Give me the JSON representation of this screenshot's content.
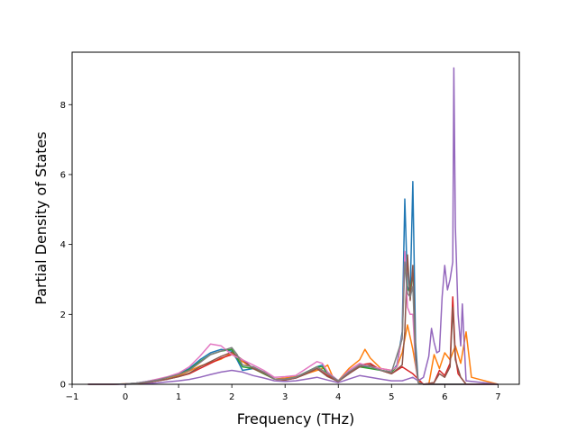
{
  "chart_data": {
    "type": "line",
    "title": "",
    "xlabel": "Frequency (THz)",
    "ylabel": "Partial Density of States",
    "xlim": [
      -1.0,
      7.4
    ],
    "ylim": [
      0,
      9.5
    ],
    "xticks": [
      -1,
      0,
      1,
      2,
      3,
      4,
      5,
      6,
      7
    ],
    "yticks": [
      0,
      2,
      4,
      6,
      8
    ],
    "grid": false,
    "legend": "none",
    "colors": [
      "#1f77b4",
      "#ff7f0e",
      "#2ca02c",
      "#d62728",
      "#9467bd",
      "#8c564b",
      "#e377c2",
      "#7f7f7f"
    ],
    "series": [
      {
        "x": [
          -0.7,
          -0.3,
          0,
          0.2,
          0.4,
          0.6,
          0.8,
          1.0,
          1.2,
          1.4,
          1.6,
          1.8,
          2.0,
          2.1,
          2.2,
          2.4,
          2.6,
          2.8,
          3.0,
          3.2,
          3.4,
          3.6,
          3.7,
          3.8,
          4.0,
          4.2,
          4.4,
          4.6,
          4.8,
          5.0,
          5.1,
          5.2,
          5.25,
          5.3,
          5.35,
          5.4,
          5.45,
          5.5,
          5.6,
          5.7,
          5.8,
          6.0,
          6.2,
          6.4,
          6.6,
          7.0
        ],
        "y": [
          0,
          0,
          0.01,
          0.03,
          0.08,
          0.14,
          0.2,
          0.3,
          0.45,
          0.7,
          0.9,
          1.0,
          0.95,
          0.7,
          0.4,
          0.45,
          0.35,
          0.15,
          0.15,
          0.2,
          0.35,
          0.5,
          0.55,
          0.35,
          0.1,
          0.35,
          0.5,
          0.5,
          0.4,
          0.35,
          0.55,
          1.5,
          5.3,
          2.8,
          2.6,
          5.8,
          1.2,
          0.1,
          0,
          0,
          0,
          0,
          0,
          0,
          0,
          0
        ]
      },
      {
        "x": [
          -0.7,
          -0.3,
          0,
          0.2,
          0.4,
          0.6,
          0.8,
          1.0,
          1.2,
          1.4,
          1.6,
          1.8,
          2.0,
          2.1,
          2.2,
          2.4,
          2.6,
          2.8,
          3.0,
          3.2,
          3.4,
          3.6,
          3.7,
          3.8,
          3.9,
          4.0,
          4.2,
          4.4,
          4.5,
          4.6,
          4.8,
          5.0,
          5.1,
          5.2,
          5.3,
          5.4,
          5.5,
          5.6,
          5.7,
          5.8,
          5.9,
          6.0,
          6.1,
          6.2,
          6.3,
          6.4,
          6.5,
          7.0
        ],
        "y": [
          0,
          0,
          0.01,
          0.02,
          0.05,
          0.1,
          0.16,
          0.25,
          0.38,
          0.52,
          0.62,
          0.72,
          0.9,
          0.75,
          0.65,
          0.45,
          0.3,
          0.15,
          0.18,
          0.22,
          0.3,
          0.4,
          0.45,
          0.55,
          0.2,
          0.1,
          0.45,
          0.7,
          1.0,
          0.75,
          0.45,
          0.4,
          0.5,
          0.9,
          1.7,
          1.0,
          0.1,
          0,
          0,
          0.85,
          0.45,
          0.9,
          0.7,
          1.1,
          0.6,
          1.5,
          0.2,
          0
        ]
      },
      {
        "x": [
          -0.7,
          -0.3,
          0,
          0.2,
          0.4,
          0.6,
          0.8,
          1.0,
          1.2,
          1.4,
          1.6,
          1.8,
          2.0,
          2.1,
          2.2,
          2.4,
          2.6,
          2.8,
          3.0,
          3.2,
          3.4,
          3.6,
          3.7,
          3.8,
          4.0,
          4.2,
          4.4,
          4.6,
          4.8,
          5.0,
          5.1,
          5.2,
          5.25,
          5.3,
          5.35,
          5.4,
          5.45,
          5.5,
          5.6,
          7.0
        ],
        "y": [
          0,
          0,
          0.01,
          0.03,
          0.07,
          0.13,
          0.2,
          0.28,
          0.42,
          0.65,
          0.85,
          0.95,
          1.0,
          0.75,
          0.5,
          0.45,
          0.3,
          0.15,
          0.15,
          0.2,
          0.35,
          0.5,
          0.5,
          0.3,
          0.1,
          0.35,
          0.5,
          0.45,
          0.4,
          0.35,
          0.5,
          1.4,
          3.6,
          2.7,
          2.7,
          3.2,
          0.8,
          0.05,
          0,
          0
        ]
      },
      {
        "x": [
          -0.7,
          -0.3,
          0,
          0.2,
          0.4,
          0.6,
          0.8,
          1.0,
          1.2,
          1.4,
          1.6,
          1.8,
          2.0,
          2.2,
          2.4,
          2.6,
          2.8,
          3.0,
          3.2,
          3.4,
          3.6,
          3.8,
          4.0,
          4.2,
          4.4,
          4.6,
          4.8,
          5.0,
          5.2,
          5.4,
          5.6,
          5.8,
          5.9,
          6.0,
          6.1,
          6.15,
          6.2,
          6.25,
          6.3,
          6.4,
          7.0
        ],
        "y": [
          0,
          0,
          0.01,
          0.02,
          0.05,
          0.1,
          0.15,
          0.22,
          0.3,
          0.45,
          0.6,
          0.75,
          0.85,
          0.7,
          0.45,
          0.35,
          0.15,
          0.12,
          0.18,
          0.3,
          0.45,
          0.25,
          0.1,
          0.3,
          0.55,
          0.6,
          0.4,
          0.3,
          0.5,
          0.3,
          0,
          0.05,
          0.4,
          0.25,
          0.6,
          2.5,
          0.8,
          0.3,
          0.2,
          0,
          0
        ]
      },
      {
        "x": [
          -0.7,
          -0.3,
          0,
          0.2,
          0.4,
          0.6,
          0.8,
          1.0,
          1.2,
          1.4,
          1.6,
          1.8,
          2.0,
          2.2,
          2.4,
          2.6,
          2.8,
          3.0,
          3.2,
          3.4,
          3.6,
          3.8,
          4.0,
          4.2,
          4.4,
          4.6,
          4.8,
          5.0,
          5.2,
          5.3,
          5.4,
          5.5,
          5.6,
          5.7,
          5.75,
          5.8,
          5.85,
          5.9,
          5.95,
          6.0,
          6.05,
          6.1,
          6.15,
          6.17,
          6.2,
          6.25,
          6.3,
          6.33,
          6.37,
          6.4,
          7.0
        ],
        "y": [
          0,
          0,
          0,
          0.01,
          0.02,
          0.04,
          0.07,
          0.1,
          0.14,
          0.2,
          0.28,
          0.35,
          0.4,
          0.35,
          0.25,
          0.18,
          0.1,
          0.08,
          0.1,
          0.15,
          0.2,
          0.12,
          0.05,
          0.15,
          0.25,
          0.2,
          0.15,
          0.1,
          0.1,
          0.15,
          0.2,
          0.1,
          0.2,
          0.8,
          1.6,
          1.2,
          0.9,
          0.95,
          2.5,
          3.4,
          2.7,
          3.0,
          3.5,
          9.05,
          4.5,
          2.0,
          1.1,
          2.3,
          1.0,
          0.1,
          0
        ]
      },
      {
        "x": [
          -0.7,
          -0.3,
          0,
          0.2,
          0.4,
          0.6,
          0.8,
          1.0,
          1.2,
          1.4,
          1.6,
          1.8,
          2.0,
          2.2,
          2.4,
          2.6,
          2.8,
          3.0,
          3.2,
          3.4,
          3.6,
          3.8,
          4.0,
          4.2,
          4.4,
          4.6,
          4.8,
          5.0,
          5.2,
          5.25,
          5.3,
          5.35,
          5.4,
          5.45,
          5.5,
          5.6,
          5.8,
          5.9,
          6.0,
          6.1,
          6.15,
          6.2,
          6.3,
          6.4,
          7.0
        ],
        "y": [
          0,
          0,
          0.01,
          0.02,
          0.05,
          0.1,
          0.15,
          0.22,
          0.32,
          0.5,
          0.65,
          0.8,
          0.92,
          0.7,
          0.45,
          0.32,
          0.15,
          0.12,
          0.18,
          0.3,
          0.45,
          0.22,
          0.08,
          0.3,
          0.5,
          0.55,
          0.4,
          0.3,
          0.55,
          1.5,
          3.7,
          2.4,
          3.4,
          0.9,
          0.05,
          0,
          0.05,
          0.3,
          0.2,
          0.5,
          2.2,
          0.7,
          0.2,
          0,
          0
        ]
      },
      {
        "x": [
          -0.7,
          -0.3,
          0,
          0.2,
          0.4,
          0.6,
          0.8,
          1.0,
          1.2,
          1.4,
          1.6,
          1.8,
          2.0,
          2.2,
          2.4,
          2.6,
          2.8,
          3.0,
          3.2,
          3.4,
          3.6,
          3.7,
          3.8,
          4.0,
          4.2,
          4.4,
          4.6,
          4.8,
          5.0,
          5.1,
          5.2,
          5.25,
          5.3,
          5.35,
          5.4,
          5.45,
          5.5,
          5.6,
          7.0
        ],
        "y": [
          0,
          0,
          0.01,
          0.03,
          0.08,
          0.15,
          0.22,
          0.32,
          0.5,
          0.8,
          1.15,
          1.1,
          0.85,
          0.7,
          0.55,
          0.4,
          0.2,
          0.22,
          0.25,
          0.45,
          0.65,
          0.6,
          0.35,
          0.1,
          0.4,
          0.6,
          0.5,
          0.45,
          0.4,
          0.5,
          1.4,
          3.8,
          2.2,
          2.0,
          2.0,
          0.6,
          0.05,
          0,
          0
        ]
      },
      {
        "x": [
          -0.7,
          -0.3,
          0,
          0.2,
          0.4,
          0.6,
          0.8,
          1.0,
          1.2,
          1.4,
          1.6,
          1.8,
          2.0,
          2.1,
          2.2,
          2.4,
          2.6,
          2.8,
          3.0,
          3.2,
          3.4,
          3.6,
          3.8,
          4.0,
          4.2,
          4.4,
          4.6,
          4.8,
          5.0,
          5.2,
          5.25,
          5.3,
          5.35,
          5.4,
          5.45,
          5.5,
          5.6,
          7.0
        ],
        "y": [
          0,
          0,
          0.01,
          0.03,
          0.07,
          0.12,
          0.2,
          0.28,
          0.4,
          0.62,
          0.85,
          0.95,
          1.05,
          0.85,
          0.55,
          0.5,
          0.35,
          0.15,
          0.15,
          0.2,
          0.35,
          0.5,
          0.3,
          0.1,
          0.35,
          0.55,
          0.5,
          0.4,
          0.35,
          1.3,
          3.5,
          2.6,
          2.5,
          2.8,
          0.7,
          0.05,
          0,
          0
        ]
      }
    ]
  }
}
